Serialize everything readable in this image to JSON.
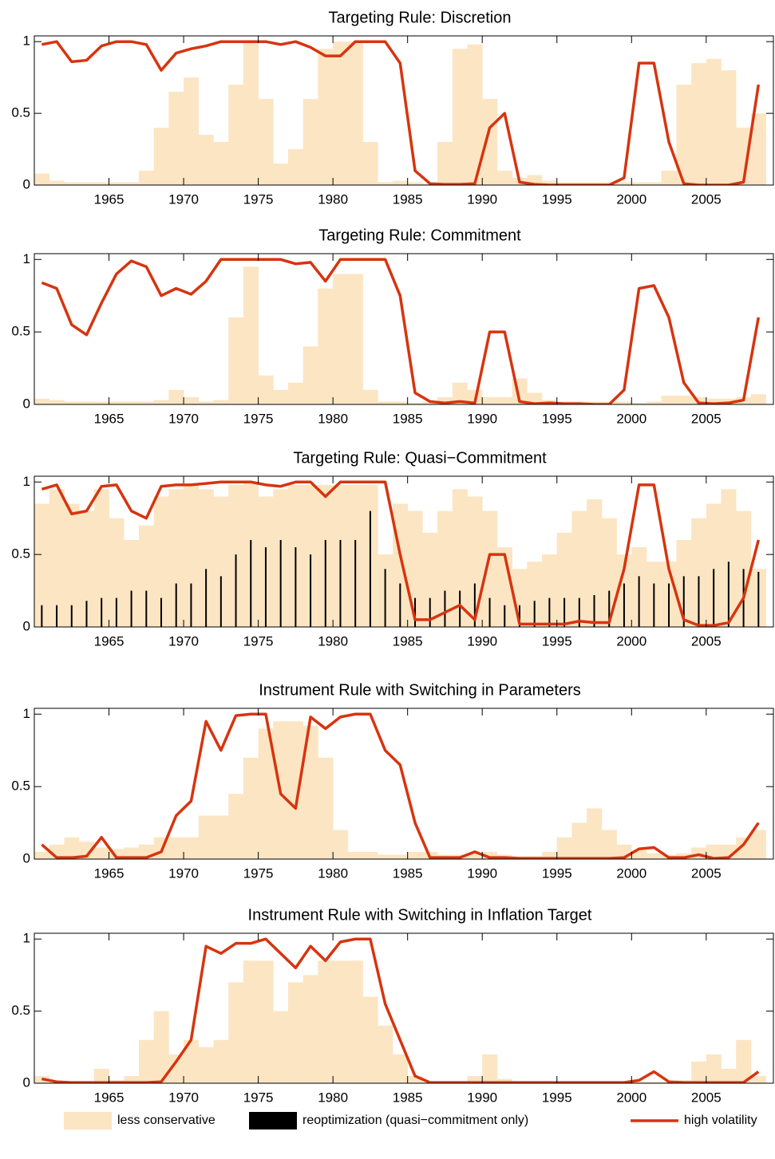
{
  "chart_data": [
    {
      "type": "combo",
      "title": "Targeting Rule: Discretion",
      "x": [
        1960.5,
        1961.5,
        1962.5,
        1963.5,
        1964.5,
        1965.5,
        1966.5,
        1967.5,
        1968.5,
        1969.5,
        1970.5,
        1971.5,
        1972.5,
        1973.5,
        1974.5,
        1975.5,
        1976.5,
        1977.5,
        1978.5,
        1979.5,
        1980.5,
        1981.5,
        1982.5,
        1983.5,
        1984.5,
        1985.5,
        1986.5,
        1987.5,
        1988.5,
        1989.5,
        1990.5,
        1991.5,
        1992.5,
        1993.5,
        1994.5,
        1995.5,
        1996.5,
        1997.5,
        1998.5,
        1999.5,
        2000.5,
        2001.5,
        2002.5,
        2003.5,
        2004.5,
        2005.5,
        2006.5,
        2007.5,
        2008.5
      ],
      "series": [
        {
          "type": "bar",
          "color": "#fbe5c3",
          "values": [
            0.08,
            0.03,
            0.02,
            0.02,
            0.02,
            0.02,
            0.02,
            0.1,
            0.4,
            0.65,
            0.75,
            0.35,
            0.3,
            0.7,
            1,
            0.6,
            0.15,
            0.25,
            0.6,
            0.95,
            1,
            1,
            0.3,
            0.02,
            0.03,
            0.02,
            0.01,
            0.3,
            0.95,
            0.98,
            0.6,
            0.1,
            0.05,
            0.07,
            0.03,
            0.02,
            0.02,
            0.02,
            0.02,
            0.02,
            0.02,
            0.02,
            0.1,
            0.7,
            0.85,
            0.88,
            0.8,
            0.4,
            0.5
          ]
        },
        {
          "type": "line",
          "color": "#d7340f",
          "values": [
            0.98,
            1,
            0.86,
            0.87,
            0.97,
            1,
            1,
            0.98,
            0.8,
            0.92,
            0.95,
            0.97,
            1,
            1,
            1,
            1,
            0.98,
            1,
            0.96,
            0.9,
            0.9,
            1,
            1,
            1,
            0.85,
            0.1,
            0.01,
            0.005,
            0.005,
            0.01,
            0.4,
            0.5,
            0.02,
            0.005,
            0,
            0,
            0,
            0,
            0,
            0.05,
            0.85,
            0.85,
            0.3,
            0.01,
            0,
            0,
            0,
            0.02,
            0.7
          ]
        }
      ],
      "xlim": [
        1960,
        2009.5
      ],
      "xticks": [
        1965,
        1970,
        1975,
        1980,
        1985,
        1990,
        1995,
        2000,
        2005
      ],
      "ylim": [
        0,
        1.04
      ],
      "yticks": [
        0,
        0.5,
        1
      ]
    },
    {
      "type": "combo",
      "title": "Targeting Rule: Commitment",
      "x": [
        1960.5,
        1961.5,
        1962.5,
        1963.5,
        1964.5,
        1965.5,
        1966.5,
        1967.5,
        1968.5,
        1969.5,
        1970.5,
        1971.5,
        1972.5,
        1973.5,
        1974.5,
        1975.5,
        1976.5,
        1977.5,
        1978.5,
        1979.5,
        1980.5,
        1981.5,
        1982.5,
        1983.5,
        1984.5,
        1985.5,
        1986.5,
        1987.5,
        1988.5,
        1989.5,
        1990.5,
        1991.5,
        1992.5,
        1993.5,
        1994.5,
        1995.5,
        1996.5,
        1997.5,
        1998.5,
        1999.5,
        2000.5,
        2001.5,
        2002.5,
        2003.5,
        2004.5,
        2005.5,
        2006.5,
        2007.5,
        2008.5
      ],
      "series": [
        {
          "type": "bar",
          "color": "#fbe5c3",
          "values": [
            0.04,
            0.03,
            0.02,
            0.02,
            0.02,
            0.02,
            0.02,
            0.02,
            0.03,
            0.1,
            0.05,
            0.02,
            0.03,
            0.6,
            0.95,
            0.2,
            0.1,
            0.15,
            0.4,
            0.8,
            0.9,
            0.9,
            0.1,
            0.02,
            0.02,
            0.01,
            0.02,
            0.05,
            0.15,
            0.1,
            0.05,
            0.05,
            0.18,
            0.08,
            0.03,
            0.02,
            0.02,
            0.02,
            0.02,
            0.02,
            0.01,
            0.02,
            0.06,
            0.06,
            0.05,
            0.04,
            0.04,
            0.05,
            0.07
          ]
        },
        {
          "type": "line",
          "color": "#d7340f",
          "values": [
            0.84,
            0.8,
            0.55,
            0.48,
            0.7,
            0.9,
            0.99,
            0.95,
            0.75,
            0.8,
            0.76,
            0.85,
            1,
            1,
            1,
            1,
            1,
            0.97,
            0.98,
            0.85,
            1,
            1,
            1,
            1,
            0.75,
            0.08,
            0.02,
            0.01,
            0.02,
            0.01,
            0.5,
            0.5,
            0.02,
            0.005,
            0.01,
            0.005,
            0.005,
            0,
            0,
            0.1,
            0.8,
            0.82,
            0.6,
            0.15,
            0.01,
            0.005,
            0.01,
            0.03,
            0.6
          ]
        }
      ],
      "xlim": [
        1960,
        2009.5
      ],
      "xticks": [
        1965,
        1970,
        1975,
        1980,
        1985,
        1990,
        1995,
        2000,
        2005
      ],
      "ylim": [
        0,
        1.04
      ],
      "yticks": [
        0,
        0.5,
        1
      ]
    },
    {
      "type": "combo",
      "title": "Targeting Rule: Quasi−Commitment",
      "x": [
        1960.5,
        1961.5,
        1962.5,
        1963.5,
        1964.5,
        1965.5,
        1966.5,
        1967.5,
        1968.5,
        1969.5,
        1970.5,
        1971.5,
        1972.5,
        1973.5,
        1974.5,
        1975.5,
        1976.5,
        1977.5,
        1978.5,
        1979.5,
        1980.5,
        1981.5,
        1982.5,
        1983.5,
        1984.5,
        1985.5,
        1986.5,
        1987.5,
        1988.5,
        1989.5,
        1990.5,
        1991.5,
        1992.5,
        1993.5,
        1994.5,
        1995.5,
        1996.5,
        1997.5,
        1998.5,
        1999.5,
        2000.5,
        2001.5,
        2002.5,
        2003.5,
        2004.5,
        2005.5,
        2006.5,
        2007.5,
        2008.5
      ],
      "series": [
        {
          "name": "less conservative",
          "type": "bar",
          "color": "#fbe5c3",
          "values": [
            0.85,
            0.95,
            0.85,
            0.8,
            0.95,
            0.75,
            0.6,
            0.7,
            0.9,
            0.95,
            0.98,
            0.95,
            0.9,
            0.98,
            1,
            0.9,
            0.95,
            0.98,
            0.98,
            0.98,
            0.98,
            0.98,
            0.98,
            0.5,
            0.85,
            0.8,
            0.65,
            0.8,
            0.95,
            0.9,
            0.8,
            0.55,
            0.4,
            0.45,
            0.5,
            0.65,
            0.8,
            0.88,
            0.75,
            0.5,
            0.55,
            0.45,
            0.45,
            0.6,
            0.75,
            0.85,
            0.95,
            0.8,
            0.4
          ]
        },
        {
          "name": "reoptimization (quasi−commitment  only)",
          "type": "spike",
          "color": "#000000",
          "values": [
            0.15,
            0.15,
            0.15,
            0.18,
            0.2,
            0.2,
            0.25,
            0.25,
            0.2,
            0.3,
            0.3,
            0.4,
            0.35,
            0.5,
            0.6,
            0.55,
            0.6,
            0.55,
            0.5,
            0.6,
            0.6,
            0.6,
            0.8,
            0.4,
            0.3,
            0.2,
            0.2,
            0.25,
            0.25,
            0.3,
            0.2,
            0.15,
            0.15,
            0.18,
            0.2,
            0.2,
            0.2,
            0.22,
            0.25,
            0.3,
            0.35,
            0.3,
            0.3,
            0.35,
            0.35,
            0.4,
            0.45,
            0.4,
            0.38
          ]
        },
        {
          "name": "high volatility",
          "type": "line",
          "color": "#d7340f",
          "values": [
            0.95,
            0.98,
            0.78,
            0.8,
            0.97,
            0.98,
            0.8,
            0.75,
            0.97,
            0.98,
            0.98,
            0.99,
            1,
            1,
            1,
            0.98,
            0.97,
            1,
            1,
            0.9,
            1,
            1,
            1,
            1,
            0.5,
            0.05,
            0.05,
            0.1,
            0.15,
            0.05,
            0.5,
            0.5,
            0.02,
            0.02,
            0.02,
            0.02,
            0.04,
            0.03,
            0.03,
            0.4,
            0.98,
            0.98,
            0.4,
            0.05,
            0.01,
            0.01,
            0.03,
            0.2,
            0.6
          ]
        }
      ],
      "xlim": [
        1960,
        2009.5
      ],
      "xticks": [
        1965,
        1970,
        1975,
        1980,
        1985,
        1990,
        1995,
        2000,
        2005
      ],
      "ylim": [
        0,
        1.04
      ],
      "yticks": [
        0,
        0.5,
        1
      ]
    },
    {
      "type": "combo",
      "title": "Instrument Rule with Switching in Parameters",
      "x": [
        1960.5,
        1961.5,
        1962.5,
        1963.5,
        1964.5,
        1965.5,
        1966.5,
        1967.5,
        1968.5,
        1969.5,
        1970.5,
        1971.5,
        1972.5,
        1973.5,
        1974.5,
        1975.5,
        1976.5,
        1977.5,
        1978.5,
        1979.5,
        1980.5,
        1981.5,
        1982.5,
        1983.5,
        1984.5,
        1985.5,
        1986.5,
        1987.5,
        1988.5,
        1989.5,
        1990.5,
        1991.5,
        1992.5,
        1993.5,
        1994.5,
        1995.5,
        1996.5,
        1997.5,
        1998.5,
        1999.5,
        2000.5,
        2001.5,
        2002.5,
        2003.5,
        2004.5,
        2005.5,
        2006.5,
        2007.5,
        2008.5
      ],
      "series": [
        {
          "type": "bar",
          "color": "#fbe5c3",
          "values": [
            0.05,
            0.1,
            0.15,
            0.12,
            0.08,
            0.07,
            0.08,
            0.1,
            0.15,
            0.15,
            0.15,
            0.3,
            0.3,
            0.45,
            0.7,
            0.9,
            0.95,
            0.95,
            0.92,
            0.7,
            0.2,
            0.05,
            0.05,
            0.03,
            0.03,
            0.05,
            0.05,
            0.03,
            0.03,
            0.04,
            0.05,
            0.03,
            0.02,
            0.02,
            0.05,
            0.15,
            0.25,
            0.35,
            0.2,
            0.1,
            0.06,
            0.04,
            0.03,
            0.04,
            0.08,
            0.1,
            0.1,
            0.15,
            0.2
          ]
        },
        {
          "type": "line",
          "color": "#d7340f",
          "values": [
            0.1,
            0.01,
            0.01,
            0.02,
            0.15,
            0.01,
            0.01,
            0.01,
            0.05,
            0.3,
            0.4,
            0.95,
            0.75,
            0.99,
            1,
            1,
            0.45,
            0.35,
            0.98,
            0.9,
            0.98,
            1,
            1,
            0.75,
            0.65,
            0.25,
            0.01,
            0.01,
            0.01,
            0.05,
            0.01,
            0.01,
            0.005,
            0.005,
            0.005,
            0.005,
            0.005,
            0.005,
            0.005,
            0.01,
            0.07,
            0.08,
            0.01,
            0.01,
            0.03,
            0.005,
            0.01,
            0.1,
            0.25
          ]
        }
      ],
      "xlim": [
        1960,
        2009.5
      ],
      "xticks": [
        1965,
        1970,
        1975,
        1980,
        1985,
        1990,
        1995,
        2000,
        2005
      ],
      "ylim": [
        0,
        1.04
      ],
      "yticks": [
        0,
        0.5,
        1
      ]
    },
    {
      "type": "combo",
      "title": "Instrument Rule with Switching in Inflation Target",
      "x": [
        1960.5,
        1961.5,
        1962.5,
        1963.5,
        1964.5,
        1965.5,
        1966.5,
        1967.5,
        1968.5,
        1969.5,
        1970.5,
        1971.5,
        1972.5,
        1973.5,
        1974.5,
        1975.5,
        1976.5,
        1977.5,
        1978.5,
        1979.5,
        1980.5,
        1981.5,
        1982.5,
        1983.5,
        1984.5,
        1985.5,
        1986.5,
        1987.5,
        1988.5,
        1989.5,
        1990.5,
        1991.5,
        1992.5,
        1993.5,
        1994.5,
        1995.5,
        1996.5,
        1997.5,
        1998.5,
        1999.5,
        2000.5,
        2001.5,
        2002.5,
        2003.5,
        2004.5,
        2005.5,
        2006.5,
        2007.5,
        2008.5
      ],
      "series": [
        {
          "type": "bar",
          "color": "#fbe5c3",
          "values": [
            0.05,
            0.01,
            0.01,
            0.01,
            0.1,
            0.02,
            0.05,
            0.3,
            0.5,
            0.2,
            0.3,
            0.25,
            0.3,
            0.7,
            0.85,
            0.85,
            0.5,
            0.7,
            0.75,
            0.85,
            0.85,
            0.85,
            0.6,
            0.4,
            0.2,
            0.05,
            0.01,
            0.01,
            0.01,
            0.05,
            0.2,
            0.03,
            0.01,
            0.01,
            0.01,
            0.01,
            0.01,
            0.01,
            0.01,
            0.01,
            0.01,
            0.01,
            0.01,
            0.02,
            0.15,
            0.2,
            0.1,
            0.3,
            0.05
          ]
        },
        {
          "type": "line",
          "color": "#d7340f",
          "values": [
            0.03,
            0.01,
            0.005,
            0.005,
            0.005,
            0.005,
            0.005,
            0.005,
            0.01,
            0.15,
            0.3,
            0.95,
            0.9,
            0.97,
            0.97,
            1,
            0.9,
            0.8,
            0.95,
            0.85,
            0.98,
            1,
            1,
            0.55,
            0.3,
            0.05,
            0.005,
            0.005,
            0.005,
            0.005,
            0.005,
            0.005,
            0.005,
            0.005,
            0.005,
            0.005,
            0.005,
            0.005,
            0.005,
            0.005,
            0.02,
            0.08,
            0.01,
            0.005,
            0.005,
            0.005,
            0.005,
            0.005,
            0.08
          ]
        }
      ],
      "xlim": [
        1960,
        2009.5
      ],
      "xticks": [
        1965,
        1970,
        1975,
        1980,
        1985,
        1990,
        1995,
        2000,
        2005
      ],
      "ylim": [
        0,
        1.04
      ],
      "yticks": [
        0,
        0.5,
        1
      ]
    }
  ]
}
